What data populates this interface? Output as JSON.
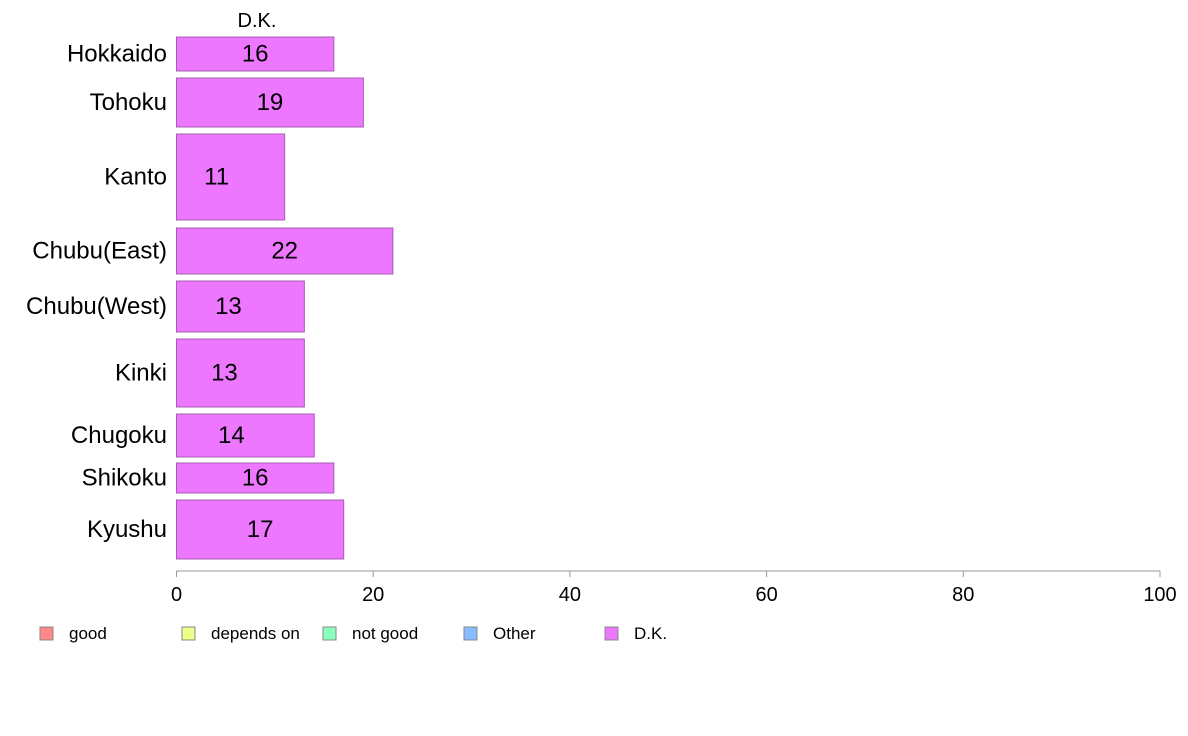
{
  "chart_data": {
    "type": "bar",
    "orientation": "horizontal",
    "title": "D.K.",
    "categories": [
      "Hokkaido",
      "Tohoku",
      "Kanto",
      "Chubu(East)",
      "Chubu(West)",
      "Kinki",
      "Chugoku",
      "Shikoku",
      "Kyushu"
    ],
    "series": [
      {
        "name": "D.K.",
        "values": [
          16,
          19,
          11,
          22,
          13,
          13,
          14,
          16,
          17
        ],
        "color": "#ee77ff"
      }
    ],
    "data_labels": [
      "16",
      "19",
      "11",
      "22",
      "13",
      "13",
      "14",
      "16",
      "17"
    ],
    "xlim": [
      0,
      100
    ],
    "xticks": [
      0,
      20,
      40,
      60,
      80,
      100
    ],
    "xtick_labels": [
      "0",
      "20",
      "40",
      "60",
      "80",
      "100"
    ],
    "grid": false,
    "legend": {
      "placement": "bottom",
      "items": [
        {
          "label": "good",
          "color": "#ff8888"
        },
        {
          "label": "depends on",
          "color": "#eeff88"
        },
        {
          "label": "not good",
          "color": "#88ffbb"
        },
        {
          "label": "Other",
          "color": "#88bbff"
        },
        {
          "label": "D.K.",
          "color": "#ee77ff"
        }
      ]
    }
  }
}
